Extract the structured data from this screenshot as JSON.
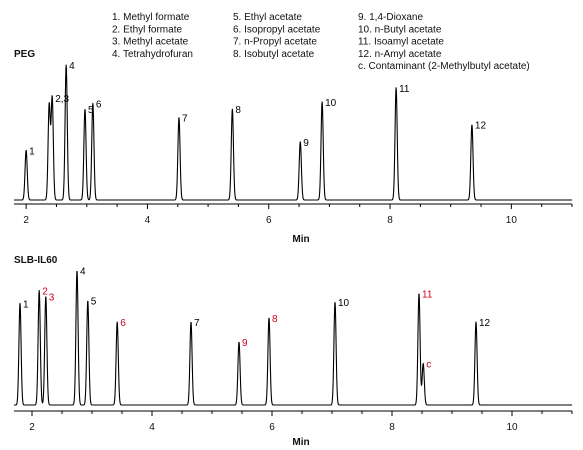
{
  "legend": [
    "1.  Methyl formate",
    "2.  Ethyl formate",
    "3.  Methyl acetate",
    "4.  Tetrahydrofuran",
    "5.  Ethyl acetate",
    "6.  Isopropyl acetate",
    "7.  n-Propyl acetate",
    "8.  Isobutyl acetate",
    "9.  1,4-Dioxane",
    "10.  n-Butyl acetate",
    "11.  Isoamyl acetate",
    "12.  n-Amyl acetate",
    "c.  Contaminant (2-Methylbutyl acetate)"
  ],
  "colors": {
    "trace": "#000000",
    "highlight": "#d0021b",
    "text": "#111111"
  },
  "chart_data": [
    {
      "type": "line",
      "title": "PEG",
      "xlabel": "Min",
      "ylabel": "",
      "xlim": [
        1.8,
        11.0
      ],
      "ylim": [
        0,
        100
      ],
      "xticks": [
        2,
        4,
        6,
        8,
        10
      ],
      "grid": false,
      "peaks": [
        {
          "label": "1",
          "x": 2.0,
          "y": 35,
          "color": "#000000"
        },
        {
          "label": "",
          "x": 2.38,
          "y": 67,
          "color": "#000000"
        },
        {
          "label": "2,3",
          "x": 2.43,
          "y": 72,
          "color": "#000000"
        },
        {
          "label": "4",
          "x": 2.66,
          "y": 95,
          "color": "#000000"
        },
        {
          "label": "5",
          "x": 2.97,
          "y": 64,
          "color": "#000000"
        },
        {
          "label": "6",
          "x": 3.1,
          "y": 68,
          "color": "#000000"
        },
        {
          "label": "7",
          "x": 4.52,
          "y": 58,
          "color": "#000000"
        },
        {
          "label": "8",
          "x": 5.4,
          "y": 64,
          "color": "#000000"
        },
        {
          "label": "9",
          "x": 6.52,
          "y": 41,
          "color": "#000000"
        },
        {
          "label": "10",
          "x": 6.88,
          "y": 69,
          "color": "#000000"
        },
        {
          "label": "11",
          "x": 8.1,
          "y": 79,
          "color": "#000000"
        },
        {
          "label": "12",
          "x": 9.35,
          "y": 53,
          "color": "#000000"
        }
      ]
    },
    {
      "type": "line",
      "title": "SLB-IL60",
      "xlabel": "Min",
      "ylabel": "",
      "xlim": [
        1.7,
        11.0
      ],
      "ylim": [
        0,
        100
      ],
      "xticks": [
        2,
        4,
        6,
        8,
        10
      ],
      "grid": false,
      "peaks": [
        {
          "label": "1",
          "x": 1.8,
          "y": 71,
          "color": "#000000"
        },
        {
          "label": "2",
          "x": 2.12,
          "y": 80,
          "color": "#d0021b"
        },
        {
          "label": "3",
          "x": 2.23,
          "y": 76,
          "color": "#d0021b"
        },
        {
          "label": "4",
          "x": 2.75,
          "y": 94,
          "color": "#000000"
        },
        {
          "label": "5",
          "x": 2.93,
          "y": 73,
          "color": "#000000"
        },
        {
          "label": "6",
          "x": 3.42,
          "y": 58,
          "color": "#d0021b"
        },
        {
          "label": "7",
          "x": 4.65,
          "y": 58,
          "color": "#000000"
        },
        {
          "label": "9",
          "x": 5.45,
          "y": 44,
          "color": "#d0021b"
        },
        {
          "label": "8",
          "x": 5.95,
          "y": 61,
          "color": "#d0021b"
        },
        {
          "label": "10",
          "x": 7.05,
          "y": 72,
          "color": "#000000"
        },
        {
          "label": "11",
          "x": 8.45,
          "y": 78,
          "color": "#d0021b"
        },
        {
          "label": "c",
          "x": 8.52,
          "y": 29,
          "color": "#d0021b"
        },
        {
          "label": "12",
          "x": 9.4,
          "y": 58,
          "color": "#000000"
        }
      ]
    }
  ]
}
